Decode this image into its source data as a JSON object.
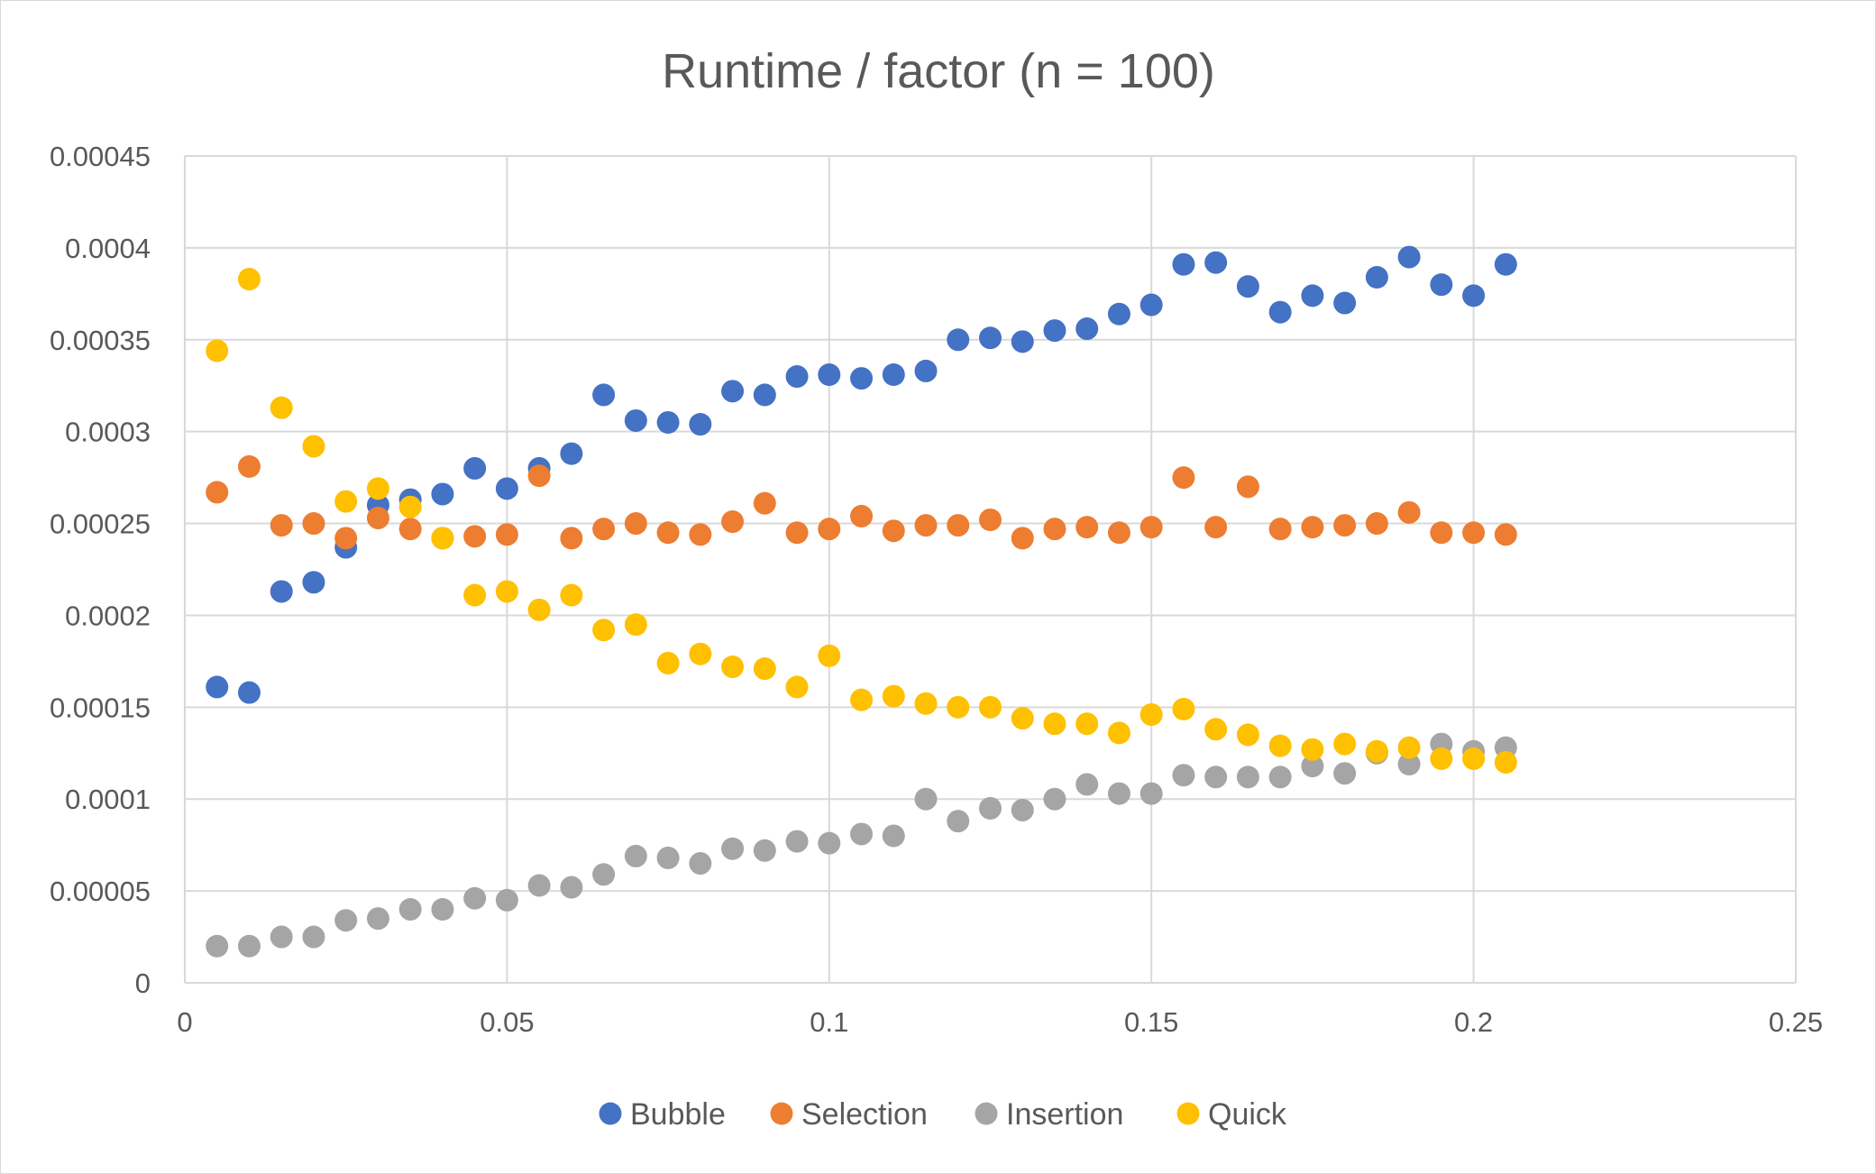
{
  "chart_data": {
    "type": "scatter",
    "title": "Runtime / factor (n = 100)",
    "xlabel": "",
    "ylabel": "",
    "xlim": [
      0,
      0.25
    ],
    "ylim": [
      0,
      0.00045
    ],
    "x_ticks": [
      "0",
      "0.05",
      "0.1",
      "0.15",
      "0.2",
      "0.25"
    ],
    "y_ticks": [
      "0",
      "0.00005",
      "0.0001",
      "0.00015",
      "0.0002",
      "0.00025",
      "0.0003",
      "0.00035",
      "0.0004",
      "0.00045"
    ],
    "grid": true,
    "legend_position": "bottom",
    "x": [
      0.005,
      0.01,
      0.015,
      0.02,
      0.025,
      0.03,
      0.035,
      0.04,
      0.045,
      0.05,
      0.055,
      0.06,
      0.065,
      0.07,
      0.075,
      0.08,
      0.085,
      0.09,
      0.095,
      0.1,
      0.105,
      0.11,
      0.115,
      0.12,
      0.125,
      0.13,
      0.135,
      0.14,
      0.145,
      0.15,
      0.155,
      0.16,
      0.165,
      0.17,
      0.175,
      0.18,
      0.185,
      0.19,
      0.195,
      0.2,
      0.205
    ],
    "series": [
      {
        "name": "Bubble",
        "color": "#4472c4",
        "values": [
          0.000161,
          0.000158,
          0.000213,
          0.000218,
          0.000237,
          0.00026,
          0.000263,
          0.000266,
          0.00028,
          0.000269,
          0.00028,
          0.000288,
          0.00032,
          0.000306,
          0.000305,
          0.000304,
          0.000322,
          0.00032,
          0.00033,
          0.000331,
          0.000329,
          0.000331,
          0.000333,
          0.00035,
          0.000351,
          0.000349,
          0.000355,
          0.000356,
          0.000364,
          0.000369,
          0.000391,
          0.000392,
          0.000379,
          0.000365,
          0.000374,
          0.00037,
          0.000384,
          0.000395,
          0.00038,
          0.000374,
          0.000391
        ]
      },
      {
        "name": "Selection",
        "color": "#ed7d31",
        "values": [
          0.000267,
          0.000281,
          0.000249,
          0.00025,
          0.000242,
          0.000253,
          0.000247,
          0.000242,
          0.000243,
          0.000244,
          0.000276,
          0.000242,
          0.000247,
          0.00025,
          0.000245,
          0.000244,
          0.000251,
          0.000261,
          0.000245,
          0.000247,
          0.000254,
          0.000246,
          0.000249,
          0.000249,
          0.000252,
          0.000242,
          0.000247,
          0.000248,
          0.000245,
          0.000248,
          0.000275,
          0.000248,
          0.00027,
          0.000247,
          0.000248,
          0.000249,
          0.00025,
          0.000256,
          0.000245,
          0.000245,
          0.000244
        ]
      },
      {
        "name": "Insertion",
        "color": "#a5a5a5",
        "values": [
          2e-05,
          2e-05,
          2.5e-05,
          2.5e-05,
          3.4e-05,
          3.5e-05,
          4e-05,
          4e-05,
          4.6e-05,
          4.5e-05,
          5.3e-05,
          5.2e-05,
          5.9e-05,
          6.9e-05,
          6.8e-05,
          6.5e-05,
          7.3e-05,
          7.2e-05,
          7.7e-05,
          7.6e-05,
          8.1e-05,
          8e-05,
          0.0001,
          8.8e-05,
          9.5e-05,
          9.4e-05,
          0.0001,
          0.000108,
          0.000103,
          0.000103,
          0.000113,
          0.000112,
          0.000112,
          0.000112,
          0.000118,
          0.000114,
          0.000125,
          0.000119,
          0.00013,
          0.000126,
          0.000128
        ]
      },
      {
        "name": "Quick",
        "color": "#ffc000",
        "values": [
          0.000344,
          0.000383,
          0.000313,
          0.000292,
          0.000262,
          0.000269,
          0.000259,
          0.000242,
          0.000211,
          0.000213,
          0.000203,
          0.000211,
          0.000192,
          0.000195,
          0.000174,
          0.000179,
          0.000172,
          0.000171,
          0.000161,
          0.000178,
          0.000154,
          0.000156,
          0.000152,
          0.00015,
          0.00015,
          0.000144,
          0.000141,
          0.000141,
          0.000136,
          0.000146,
          0.000149,
          0.000138,
          0.000135,
          0.000129,
          0.000127,
          0.00013,
          0.000126,
          0.000128,
          0.000122,
          0.000122,
          0.00012
        ]
      }
    ]
  }
}
